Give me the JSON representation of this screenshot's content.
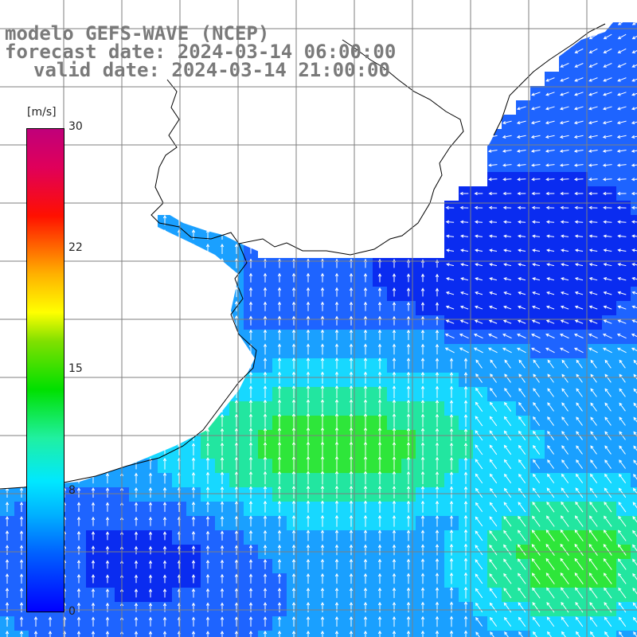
{
  "title": {
    "model": "modelo GEFS-WAVE (NCEP)",
    "forecast": "forecast date: 2024-03-14 06:00:00",
    "valid": "valid date: 2024-03-14 21:00:00"
  },
  "colorbar": {
    "unit": "[m/s]",
    "ticks": [
      "30",
      "22",
      "15",
      "8",
      "0"
    ],
    "tick_values": [
      30,
      22,
      15,
      8,
      0
    ],
    "range": [
      0,
      30
    ],
    "colors": [
      "#0000ff",
      "#00b0ff",
      "#00e8ff",
      "#00e000",
      "#ffff00",
      "#ff6000",
      "#ff1000",
      "#c0007a"
    ]
  },
  "map": {
    "land_color": "#ffffff",
    "coastline_color": "#000000",
    "grid_color": "#808080",
    "variable": "wind speed with direction arrows",
    "palette_dominant": [
      "#0a2cf0",
      "#1e64ff",
      "#1aa0ff",
      "#17d8ff",
      "#22e6a0",
      "#2ee63a"
    ]
  }
}
